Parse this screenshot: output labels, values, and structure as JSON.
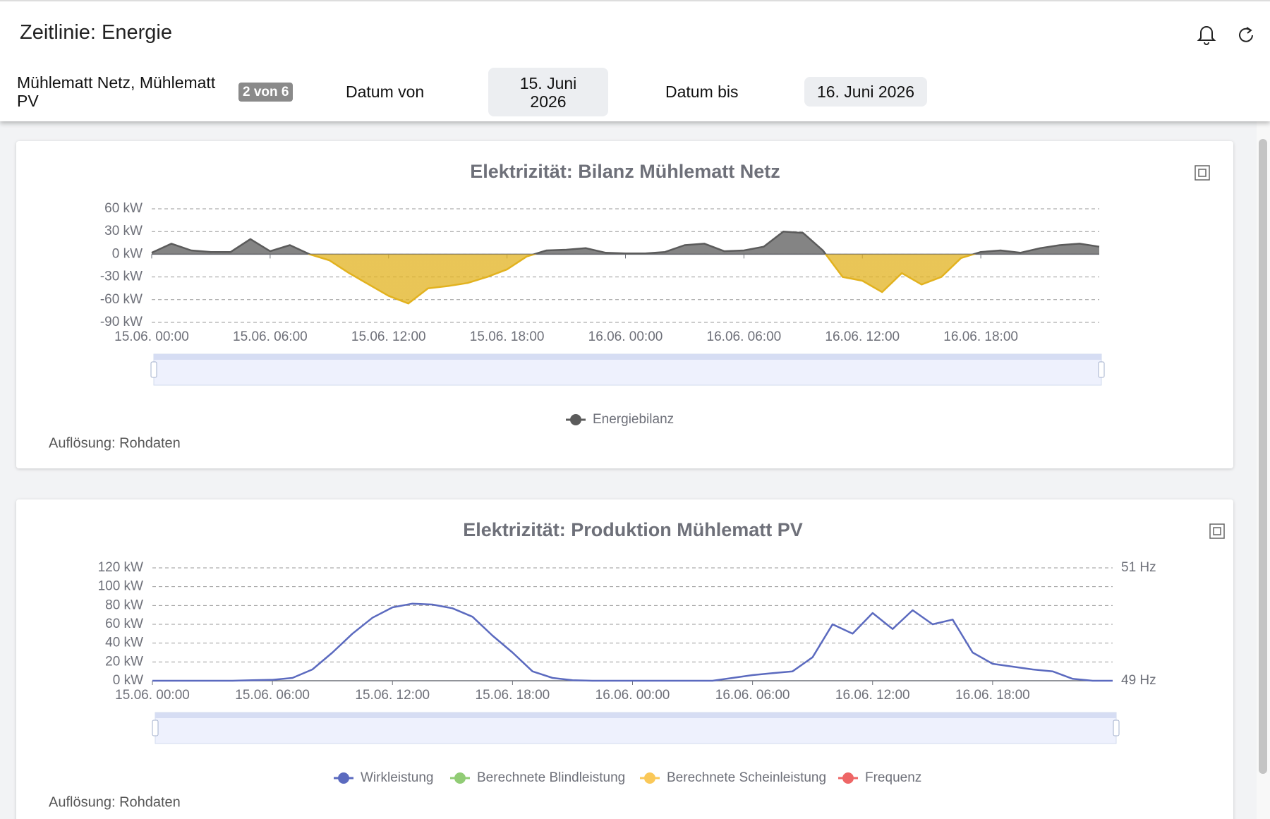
{
  "header": {
    "title": "Zeitlinie: Energie",
    "selection": "Mühlematt Netz, Mühlematt PV",
    "selection_count": "2 von 6",
    "date_from_label": "Datum von",
    "date_from": "15. Juni 2026",
    "date_to_label": "Datum bis",
    "date_to": "16. Juni 2026"
  },
  "chart_data": [
    {
      "type": "area",
      "title": "Elektrizität: Bilanz Mühlematt Netz",
      "resolution": "Auflösung: Rohdaten",
      "x": [
        "15.06. 00:00",
        "15.06. 01:00",
        "15.06. 02:00",
        "15.06. 03:00",
        "15.06. 04:00",
        "15.06. 05:00",
        "15.06. 06:00",
        "15.06. 07:00",
        "15.06. 08:00",
        "15.06. 09:00",
        "15.06. 10:00",
        "15.06. 11:00",
        "15.06. 12:00",
        "15.06. 13:00",
        "15.06. 14:00",
        "15.06. 15:00",
        "15.06. 16:00",
        "15.06. 17:00",
        "15.06. 18:00",
        "15.06. 19:00",
        "15.06. 20:00",
        "15.06. 21:00",
        "15.06. 22:00",
        "15.06. 23:00",
        "16.06. 00:00",
        "16.06. 01:00",
        "16.06. 02:00",
        "16.06. 03:00",
        "16.06. 04:00",
        "16.06. 05:00",
        "16.06. 06:00",
        "16.06. 07:00",
        "16.06. 08:00",
        "16.06. 09:00",
        "16.06. 10:00",
        "16.06. 11:00",
        "16.06. 12:00",
        "16.06. 13:00",
        "16.06. 14:00",
        "16.06. 15:00",
        "16.06. 16:00",
        "16.06. 17:00",
        "16.06. 18:00",
        "16.06. 19:00",
        "16.06. 20:00",
        "16.06. 21:00",
        "16.06. 22:00",
        "16.06. 23:00",
        "17.06. 00:00"
      ],
      "series": [
        {
          "name": "Energiebilanz",
          "color": "#5b5b5b",
          "negative_color": "#e2b21f",
          "values": [
            2,
            14,
            5,
            3,
            3,
            20,
            4,
            12,
            0,
            -8,
            -25,
            -40,
            -55,
            -65,
            -45,
            -42,
            -38,
            -30,
            -20,
            -3,
            5,
            6,
            8,
            2,
            1,
            1,
            3,
            12,
            14,
            4,
            5,
            10,
            30,
            28,
            5,
            -30,
            -35,
            -50,
            -25,
            -40,
            -30,
            -5,
            3,
            5,
            2,
            8,
            12,
            14,
            10
          ]
        }
      ],
      "xlim": [
        "15.06. 00:00",
        "17.06. 00:00"
      ],
      "xticks": [
        "15.06. 00:00",
        "15.06. 06:00",
        "15.06. 12:00",
        "15.06. 18:00",
        "16.06. 00:00",
        "16.06. 06:00",
        "16.06. 12:00",
        "16.06. 18:00"
      ],
      "ylim": [
        -90,
        60
      ],
      "yticks": [
        {
          "value": -90,
          "label": "-90 kW"
        },
        {
          "value": -60,
          "label": "-60 kW"
        },
        {
          "value": -30,
          "label": "-30 kW"
        },
        {
          "value": 0,
          "label": "0 kW"
        },
        {
          "value": 30,
          "label": "30 kW"
        },
        {
          "value": 60,
          "label": "60 kW"
        }
      ],
      "grid": true
    },
    {
      "type": "line",
      "title": "Elektrizität: Produktion Mühlematt PV",
      "resolution": "Auflösung: Rohdaten",
      "x": [
        "15.06. 00:00",
        "15.06. 01:00",
        "15.06. 02:00",
        "15.06. 03:00",
        "15.06. 04:00",
        "15.06. 05:00",
        "15.06. 06:00",
        "15.06. 07:00",
        "15.06. 08:00",
        "15.06. 09:00",
        "15.06. 10:00",
        "15.06. 11:00",
        "15.06. 12:00",
        "15.06. 13:00",
        "15.06. 14:00",
        "15.06. 15:00",
        "15.06. 16:00",
        "15.06. 17:00",
        "15.06. 18:00",
        "15.06. 19:00",
        "15.06. 20:00",
        "15.06. 21:00",
        "15.06. 22:00",
        "15.06. 23:00",
        "16.06. 00:00",
        "16.06. 01:00",
        "16.06. 02:00",
        "16.06. 03:00",
        "16.06. 04:00",
        "16.06. 05:00",
        "16.06. 06:00",
        "16.06. 07:00",
        "16.06. 08:00",
        "16.06. 09:00",
        "16.06. 10:00",
        "16.06. 11:00",
        "16.06. 12:00",
        "16.06. 13:00",
        "16.06. 14:00",
        "16.06. 15:00",
        "16.06. 16:00",
        "16.06. 17:00",
        "16.06. 18:00",
        "16.06. 19:00",
        "16.06. 20:00",
        "16.06. 21:00",
        "16.06. 22:00",
        "16.06. 23:00",
        "17.06. 00:00"
      ],
      "series": [
        {
          "name": "Wirkleistung",
          "color": "#5b6abf",
          "values": [
            0,
            0,
            0,
            0,
            0,
            0.5,
            1,
            3,
            12,
            30,
            50,
            67,
            78,
            82,
            81,
            77,
            68,
            48,
            30,
            10,
            3,
            0.5,
            0,
            0,
            0,
            0,
            0,
            0,
            0,
            3,
            6,
            8,
            10,
            25,
            60,
            50,
            72,
            55,
            75,
            60,
            65,
            30,
            18,
            15,
            12,
            10,
            2,
            0,
            0
          ]
        },
        {
          "name": "Berechnete Blindleistung",
          "color": "#91cc75",
          "values": [
            null,
            null,
            null,
            null,
            null,
            null,
            null,
            null,
            null,
            null,
            null,
            null,
            null,
            null,
            null,
            null,
            null,
            null,
            null,
            null,
            null,
            null,
            null,
            null,
            null,
            null,
            null,
            null,
            null,
            null,
            null,
            null,
            null,
            null,
            null,
            null,
            null,
            null,
            null,
            null,
            null,
            null,
            null,
            null,
            null,
            null,
            null,
            null,
            null
          ]
        },
        {
          "name": "Berechnete Scheinleistung",
          "color": "#fac858",
          "values": [
            null,
            null,
            null,
            null,
            null,
            null,
            null,
            null,
            null,
            null,
            null,
            null,
            null,
            null,
            null,
            null,
            null,
            null,
            null,
            null,
            null,
            null,
            null,
            null,
            null,
            null,
            null,
            null,
            null,
            null,
            null,
            null,
            null,
            null,
            null,
            null,
            null,
            null,
            null,
            null,
            null,
            null,
            null,
            null,
            null,
            null,
            null,
            null,
            null
          ]
        },
        {
          "name": "Frequenz",
          "color": "#ee6666",
          "axis": "y2",
          "values": [
            null,
            null,
            null,
            null,
            null,
            null,
            null,
            null,
            null,
            null,
            null,
            null,
            null,
            null,
            null,
            null,
            null,
            null,
            null,
            null,
            null,
            null,
            null,
            null,
            null,
            null,
            null,
            null,
            null,
            null,
            null,
            null,
            null,
            null,
            null,
            null,
            null,
            null,
            null,
            null,
            null,
            null,
            null,
            null,
            null,
            null,
            null,
            null,
            null
          ]
        }
      ],
      "xlim": [
        "15.06. 00:00",
        "17.06. 00:00"
      ],
      "xticks": [
        "15.06. 00:00",
        "15.06. 06:00",
        "15.06. 12:00",
        "15.06. 18:00",
        "16.06. 00:00",
        "16.06. 06:00",
        "16.06. 12:00",
        "16.06. 18:00"
      ],
      "ylim": [
        0,
        120
      ],
      "yticks": [
        {
          "value": 0,
          "label": "0 kW"
        },
        {
          "value": 20,
          "label": "20 kW"
        },
        {
          "value": 40,
          "label": "40 kW"
        },
        {
          "value": 60,
          "label": "60 kW"
        },
        {
          "value": 80,
          "label": "80 kW"
        },
        {
          "value": 100,
          "label": "100 kW"
        },
        {
          "value": 120,
          "label": "120 kW"
        }
      ],
      "y2lim": [
        49,
        51
      ],
      "y2ticks": [
        {
          "value": 49,
          "label": "49 Hz"
        },
        {
          "value": 51,
          "label": "51 Hz"
        }
      ],
      "grid": true
    }
  ]
}
